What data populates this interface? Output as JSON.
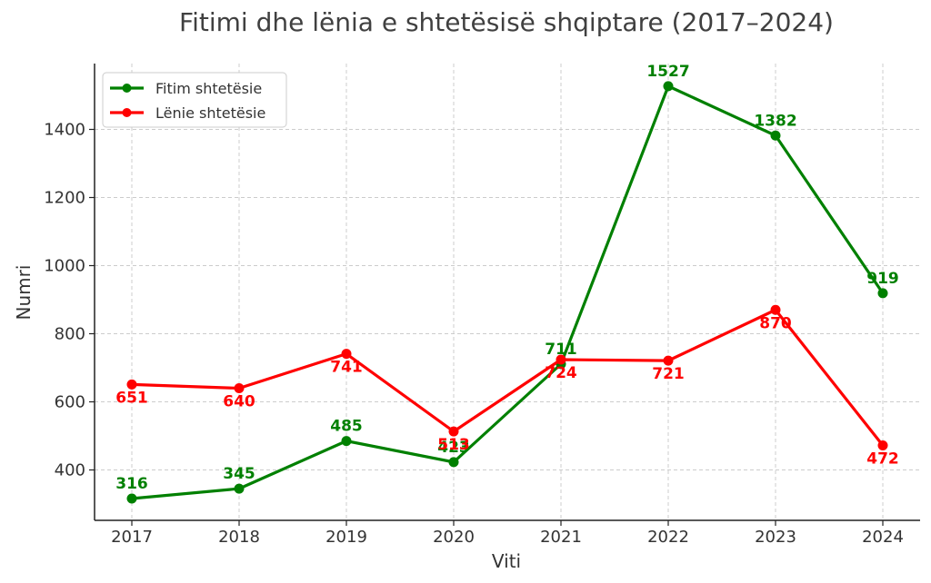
{
  "chart_data": {
    "type": "line",
    "title": "Fitimi dhe lënia e shtetësisë shqiptare (2017–2024)",
    "xlabel": "Viti",
    "ylabel": "Numri",
    "categories": [
      "2017",
      "2018",
      "2019",
      "2020",
      "2021",
      "2022",
      "2023",
      "2024"
    ],
    "y_ticks": [
      400,
      600,
      800,
      1000,
      1200,
      1400
    ],
    "ylim": [
      260,
      1580
    ],
    "grid": true,
    "legend_position": "top-left",
    "series": [
      {
        "name": "Fitim shtetësie",
        "color": "#008000",
        "values": [
          316,
          345,
          485,
          423,
          711,
          1527,
          1382,
          919
        ],
        "labels": [
          "316",
          "345",
          "485",
          "423",
          "711",
          "1527",
          "1382",
          "919"
        ]
      },
      {
        "name": "Lënie shtetësie",
        "color": "#ff0000",
        "values": [
          651,
          640,
          741,
          513,
          724,
          721,
          870,
          472
        ],
        "labels": [
          "651",
          "640",
          "741",
          "513",
          "724",
          "721",
          "870",
          "472"
        ]
      }
    ]
  }
}
